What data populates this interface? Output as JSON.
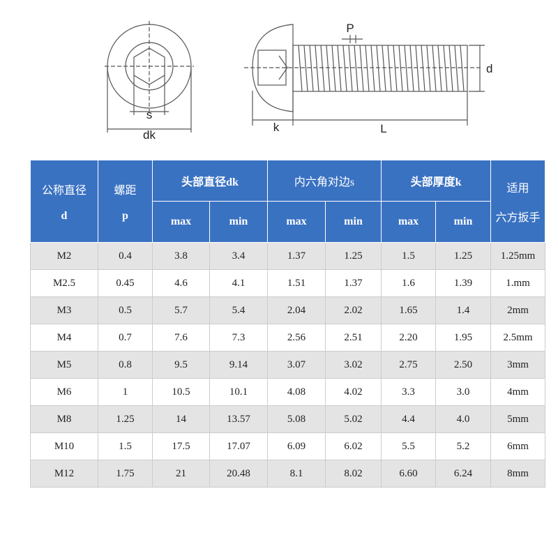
{
  "diagram": {
    "labels": {
      "s": "s",
      "dk": "dk",
      "p": "P",
      "d": "d",
      "k": "k",
      "l": "L"
    }
  },
  "table": {
    "header": {
      "diameter": [
        "公称直径",
        "d"
      ],
      "pitch": [
        "螺距",
        "p"
      ],
      "head_diameter": "头部直径dk",
      "hex_size": "内六角对边s",
      "head_height": "头部厚度k",
      "wrench": [
        "适用",
        "六方扳手"
      ],
      "sub": [
        "max",
        "min",
        "max",
        "min",
        "max",
        "min"
      ]
    },
    "rows": [
      [
        "M2",
        "0.4",
        "3.8",
        "3.4",
        "1.37",
        "1.25",
        "1.5",
        "1.25",
        "1.25mm"
      ],
      [
        "M2.5",
        "0.45",
        "4.6",
        "4.1",
        "1.51",
        "1.37",
        "1.6",
        "1.39",
        "1.mm"
      ],
      [
        "M3",
        "0.5",
        "5.7",
        "5.4",
        "2.04",
        "2.02",
        "1.65",
        "1.4",
        "2mm"
      ],
      [
        "M4",
        "0.7",
        "7.6",
        "7.3",
        "2.56",
        "2.51",
        "2.20",
        "1.95",
        "2.5mm"
      ],
      [
        "M5",
        "0.8",
        "9.5",
        "9.14",
        "3.07",
        "3.02",
        "2.75",
        "2.50",
        "3mm"
      ],
      [
        "M6",
        "1",
        "10.5",
        "10.1",
        "4.08",
        "4.02",
        "3.3",
        "3.0",
        "4mm"
      ],
      [
        "M8",
        "1.25",
        "14",
        "13.57",
        "5.08",
        "5.02",
        "4.4",
        "4.0",
        "5mm"
      ],
      [
        "M10",
        "1.5",
        "17.5",
        "17.07",
        "6.09",
        "6.02",
        "5.5",
        "5.2",
        "6mm"
      ],
      [
        "M12",
        "1.75",
        "21",
        "20.48",
        "8.1",
        "8.02",
        "6.60",
        "6.24",
        "8mm"
      ]
    ]
  }
}
